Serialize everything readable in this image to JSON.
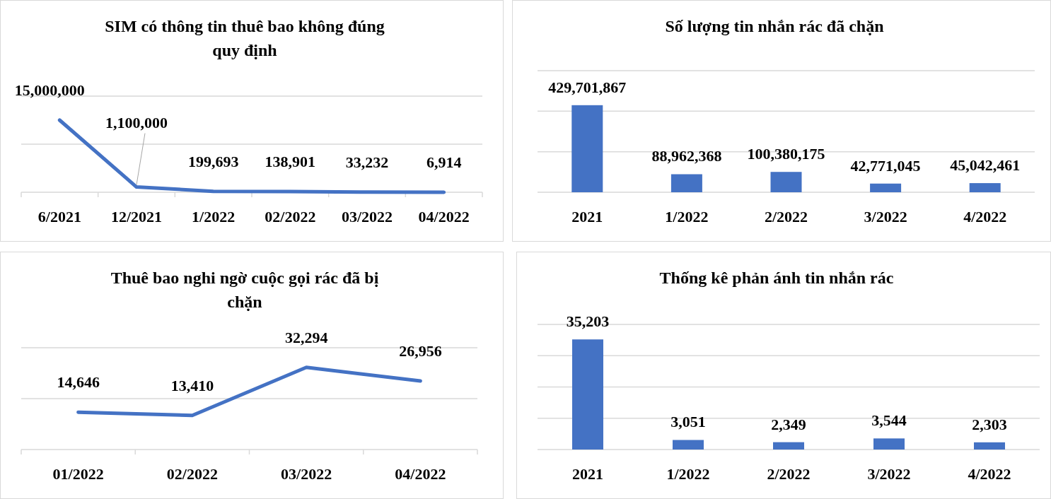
{
  "chart_data": [
    {
      "type": "line",
      "title": "SIM có thông tin thuê bao không đúng quy định",
      "categories": [
        "6/2021",
        "12/2021",
        "1/2022",
        "02/2022",
        "03/2022",
        "04/2022"
      ],
      "series": [
        {
          "color": "#4472c4",
          "values": [
            15000000,
            1100000,
            199693,
            138901,
            33232,
            6914
          ],
          "value_labels": [
            "15,000,000",
            "1,100,000",
            "199,693",
            "138,901",
            "33,232",
            "6,914"
          ]
        }
      ],
      "ylim": [
        0,
        20000000
      ],
      "yticks": [
        {
          "value": 0,
          "label": null
        },
        {
          "value": 10000000,
          "label": null
        },
        {
          "value": 20000000,
          "label": null
        }
      ],
      "grid": "y",
      "tick_labels": "x"
    },
    {
      "type": "bar",
      "title": "Số lượng tin nhắn rác đã chặn",
      "categories": [
        "2021",
        "1/2022",
        "2/2022",
        "3/2022",
        "4/2022"
      ],
      "series": [
        {
          "color": "#4472c4",
          "values": [
            429701867,
            88962368,
            100380175,
            42771045,
            45042461
          ],
          "value_labels": [
            "429,701,867",
            "88,962,368",
            "100,380,175",
            "42,771,045",
            "45,042,461"
          ]
        }
      ],
      "ylim": [
        0,
        600000000
      ],
      "yticks": [
        {
          "value": 0,
          "label": null
        },
        {
          "value": 200000000,
          "label": null
        },
        {
          "value": 400000000,
          "label": null
        },
        {
          "value": 600000000,
          "label": null
        }
      ],
      "grid": "y",
      "tick_labels": "x"
    },
    {
      "type": "line",
      "title": "Thuê bao nghi ngờ cuộc gọi rác đã bị chặn",
      "categories": [
        "01/2022",
        "02/2022",
        "03/2022",
        "04/2022"
      ],
      "series": [
        {
          "color": "#4472c4",
          "values": [
            14646,
            13410,
            32294,
            26956
          ],
          "value_labels": [
            "14,646",
            "13,410",
            "32,294",
            "26,956"
          ]
        }
      ],
      "ylim": [
        0,
        40000
      ],
      "yticks": [
        {
          "value": 0,
          "label": null
        },
        {
          "value": 20000,
          "label": null
        },
        {
          "value": 40000,
          "label": null
        }
      ],
      "grid": "y",
      "tick_labels": "x"
    },
    {
      "type": "bar",
      "title": "Thống kê phản ánh tin nhắn rác",
      "categories": [
        "2021",
        "1/2022",
        "2/2022",
        "3/2022",
        "4/2022"
      ],
      "series": [
        {
          "color": "#4472c4",
          "values": [
            35203,
            3051,
            2349,
            3544,
            2303
          ],
          "value_labels": [
            "35,203",
            "3,051",
            "2,349",
            "3,544",
            "2,303"
          ]
        }
      ],
      "ylim": [
        0,
        40000
      ],
      "yticks": [
        {
          "value": 0,
          "label": null
        },
        {
          "value": 10000,
          "label": null
        },
        {
          "value": 20000,
          "label": null
        },
        {
          "value": 30000,
          "label": null
        },
        {
          "value": 40000,
          "label": null
        }
      ],
      "grid": "y",
      "tick_labels": "x"
    }
  ]
}
